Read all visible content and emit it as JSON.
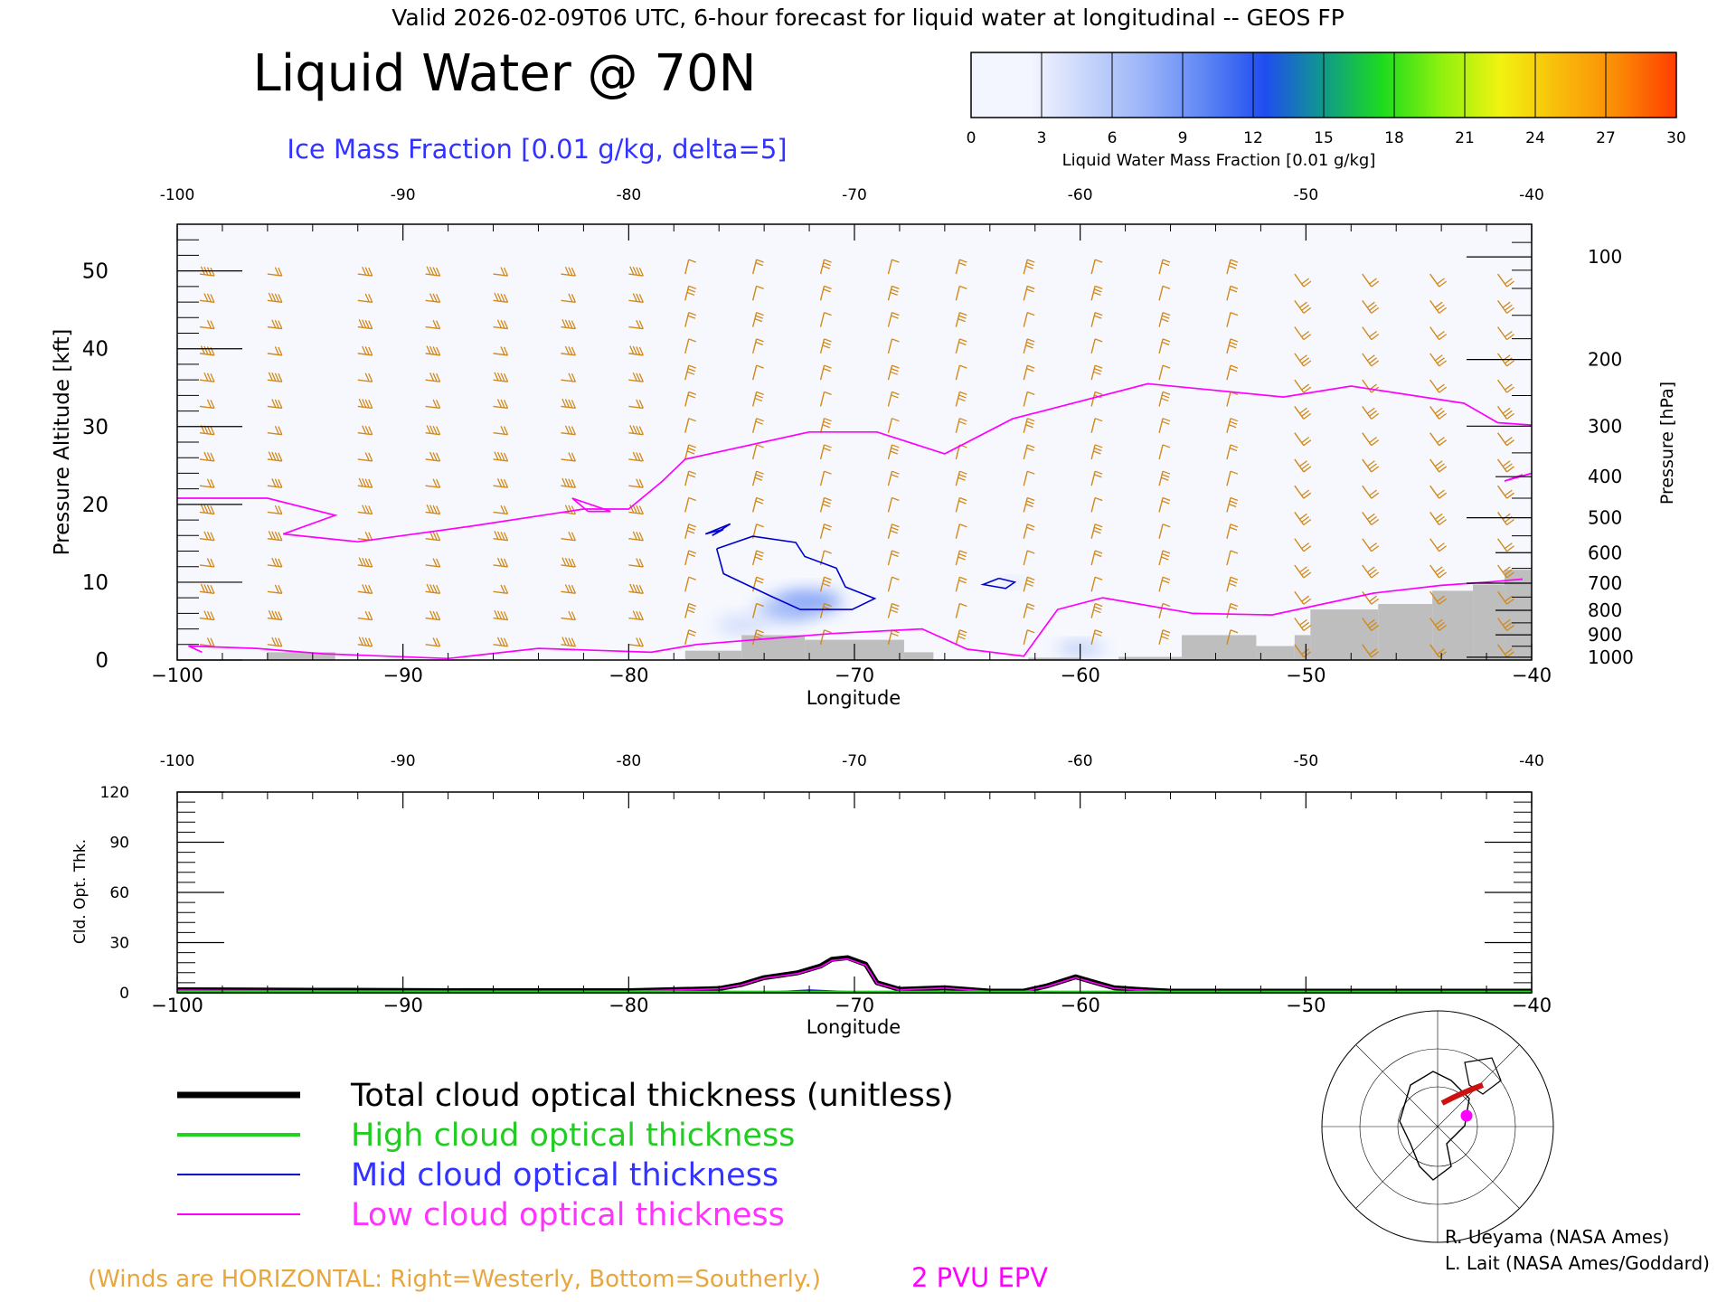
{
  "header": {
    "valid_line": "Valid 2026-02-09T06 UTC, 6-hour forecast for liquid water at longitudinal -- GEOS FP",
    "title": "Liquid Water @ 70N",
    "subtitle": "Ice Mass Fraction [0.01 g/kg, delta=5]"
  },
  "colorbar": {
    "label": "Liquid Water Mass Fraction [0.01 g/kg]",
    "ticks": [
      "0",
      "3",
      "6",
      "9",
      "12",
      "15",
      "18",
      "21",
      "24",
      "27",
      "30"
    ],
    "colors": [
      "#f4f6ff",
      "#c6d4fb",
      "#98b2f8",
      "#5c84f4",
      "#1f4df0",
      "#0f9a8a",
      "#1ddc1d",
      "#8ff10e",
      "#f2f210",
      "#f8bc0a",
      "#fb8a06",
      "#ff3c00"
    ]
  },
  "colors": {
    "wind": "#d2891a",
    "epv": "#ff00ff",
    "ice": "#0000cc",
    "terrain": "#bebebe"
  },
  "upper_panel": {
    "top_ticks": [
      "-100",
      "-90",
      "-80",
      "-70",
      "-60",
      "-50",
      "-40"
    ],
    "bottom_ticks": [
      "−100",
      "−90",
      "−80",
      "−70",
      "−60",
      "−50",
      "−40"
    ],
    "xlabel": "Longitude",
    "ylabel": "Pressure Altitude [kft]",
    "y_ticks": [
      "0",
      "10",
      "20",
      "30",
      "40",
      "50"
    ],
    "right_label": "Pressure [hPa]",
    "pressure_ticks": [
      "100",
      "200",
      "300",
      "400",
      "500",
      "600",
      "700",
      "800",
      "900",
      "1000"
    ]
  },
  "lower_panel": {
    "top_ticks": [
      "-100",
      "-90",
      "-80",
      "-70",
      "-60",
      "-50",
      "-40"
    ],
    "bottom_ticks": [
      "−100",
      "−90",
      "−80",
      "−70",
      "−60",
      "−50",
      "−40"
    ],
    "xlabel": "Longitude",
    "ylabel": "Cld. Opt. Thk.",
    "y_ticks": [
      "0",
      "30",
      "60",
      "90",
      "120"
    ]
  },
  "legend": {
    "total": "Total cloud optical thickness (unitless)",
    "high": "High cloud optical thickness",
    "mid": "Mid cloud optical thickness",
    "low": "Low cloud optical thickness"
  },
  "footer": {
    "winds_note": "(Winds are HORIZONTAL: Right=Westerly, Bottom=Southerly.)",
    "epv_label": "2 PVU EPV",
    "credit1": "R. Ueyama (NASA Ames)",
    "credit2": "L. Lait (NASA Ames/Goddard)"
  },
  "chart_data": [
    {
      "type": "heatmap",
      "title": "Liquid Water @ 70N",
      "xlabel": "Longitude",
      "ylabel": "Pressure Altitude [kft]",
      "xlim": [
        -100,
        -40
      ],
      "ylim": [
        0,
        56
      ],
      "cloud_liquid_water": [
        {
          "lon": -72,
          "kft": 7.5,
          "value": 6
        },
        {
          "lon": -73,
          "kft": 6.5,
          "value": 4
        },
        {
          "lon": -75,
          "kft": 4.5,
          "value": 2
        },
        {
          "lon": -60,
          "kft": 1.5,
          "value": 4
        },
        {
          "lon": -63,
          "kft": 10,
          "value": 2
        }
      ],
      "ice_contour_5": [
        [
          [
            -75.8,
            16.8
          ],
          [
            -76.6,
            16.2
          ],
          [
            -75.5,
            17.5
          ],
          [
            -76.3,
            16.0
          ],
          [
            -75.8,
            16.8
          ]
        ],
        [
          [
            -76.1,
            14.3
          ],
          [
            -74.5,
            15.9
          ],
          [
            -72.6,
            15.1
          ],
          [
            -72.2,
            13.3
          ],
          [
            -70.8,
            11.8
          ],
          [
            -70.4,
            9.4
          ],
          [
            -69.1,
            7.9
          ],
          [
            -70.1,
            6.5
          ],
          [
            -72.4,
            6.5
          ],
          [
            -73.7,
            8.2
          ],
          [
            -75.8,
            11.1
          ],
          [
            -76.1,
            14.3
          ]
        ],
        [
          [
            -63.6,
            10.5
          ],
          [
            -62.9,
            10.0
          ],
          [
            -63.3,
            9.2
          ],
          [
            -64.3,
            9.7
          ],
          [
            -63.6,
            10.5
          ]
        ]
      ],
      "epv_2pvu": [
        [
          [
            -100,
            20.8
          ],
          [
            -96,
            20.8
          ],
          [
            -93,
            18.6
          ],
          [
            -95.3,
            16.2
          ],
          [
            -92,
            15.2
          ],
          [
            -87,
            17.2
          ],
          [
            -82,
            19.4
          ],
          [
            -80,
            19.4
          ],
          [
            -78.5,
            23
          ],
          [
            -77.5,
            25.8
          ],
          [
            -72,
            29.3
          ],
          [
            -69,
            29.3
          ],
          [
            -66,
            26.5
          ],
          [
            -63,
            31
          ],
          [
            -57,
            35.5
          ],
          [
            -51,
            33.8
          ],
          [
            -48,
            35.2
          ],
          [
            -43,
            33
          ],
          [
            -41.5,
            30.5
          ],
          [
            -40,
            30.2
          ]
        ],
        [
          [
            -81.8,
            19.1
          ],
          [
            -82.5,
            20.8
          ],
          [
            -80.8,
            19.1
          ],
          [
            -81.8,
            19.1
          ]
        ],
        [
          [
            -98.9,
            1.0
          ],
          [
            -99.5,
            1.8
          ],
          [
            -96.5,
            1.5
          ],
          [
            -93.5,
            0.8
          ],
          [
            -88,
            0.2
          ],
          [
            -84,
            1.5
          ],
          [
            -79,
            1.0
          ],
          [
            -77,
            2.0
          ],
          [
            -71,
            3.4
          ],
          [
            -67,
            4.0
          ],
          [
            -65,
            1.4
          ],
          [
            -62.5,
            0.5
          ],
          [
            -61,
            6.5
          ],
          [
            -59,
            8.0
          ],
          [
            -55,
            6.0
          ],
          [
            -51.5,
            5.8
          ],
          [
            -47,
            8.6
          ],
          [
            -44,
            9.6
          ],
          [
            -42,
            10.0
          ],
          [
            -40.4,
            10.4
          ]
        ],
        [
          [
            -40.4,
            23.8
          ],
          [
            -41.2,
            23.0
          ],
          [
            -40,
            24.0
          ]
        ]
      ],
      "terrain": [
        {
          "lon": [
            -96,
            -93
          ],
          "kft": 1.0
        },
        {
          "lon": [
            -77.5,
            -75
          ],
          "kft": 1.2
        },
        {
          "lon": [
            -75,
            -72.2
          ],
          "kft": 3.2
        },
        {
          "lon": [
            -72.2,
            -67.8
          ],
          "kft": 2.6
        },
        {
          "lon": [
            -67.8,
            -66.5
          ],
          "kft": 1.0
        },
        {
          "lon": [
            -62.3,
            -60
          ],
          "kft": 0.3
        },
        {
          "lon": [
            -58.3,
            -55.5
          ],
          "kft": 0.4
        },
        {
          "lon": [
            -55.5,
            -52.2
          ],
          "kft": 3.2
        },
        {
          "lon": [
            -52.2,
            -50.5
          ],
          "kft": 1.8
        },
        {
          "lon": [
            -50.5,
            -49.8
          ],
          "kft": 3.2
        },
        {
          "lon": [
            -49.8,
            -46.8
          ],
          "kft": 6.5
        },
        {
          "lon": [
            -46.8,
            -44.4
          ],
          "kft": 7.2
        },
        {
          "lon": [
            -44.4,
            -42.6
          ],
          "kft": 8.9
        },
        {
          "lon": [
            -42.6,
            -41.2
          ],
          "kft": 9.7
        },
        {
          "lon": [
            -41.2,
            -40
          ],
          "kft": 11.6
        }
      ]
    },
    {
      "type": "line",
      "xlabel": "Longitude",
      "ylabel": "Cld. Opt. Thk.",
      "xlim": [
        -100,
        -40
      ],
      "ylim": [
        0,
        120
      ],
      "series": [
        {
          "name": "Total cloud optical thickness (unitless)",
          "x": [
            -100,
            -94,
            -86,
            -80,
            -76,
            -75,
            -74,
            -73,
            -72.5,
            -71.5,
            -71,
            -70.3,
            -69.5,
            -69,
            -68,
            -66,
            -64,
            -62.5,
            -61.5,
            -60.2,
            -59.3,
            -58.5,
            -57.5,
            -56,
            -50,
            -40
          ],
          "values": [
            1.8,
            1.5,
            1.2,
            1.2,
            2.5,
            5,
            9,
            11,
            12,
            16,
            20,
            21,
            17,
            6,
            2,
            3,
            1,
            1,
            4,
            9.5,
            6,
            3,
            2,
            1,
            1,
            1
          ]
        },
        {
          "name": "High cloud optical thickness",
          "x": [
            -100,
            -70,
            -40
          ],
          "values": [
            0.3,
            0.3,
            0.3
          ]
        },
        {
          "name": "Mid cloud optical thickness",
          "x": [
            -100,
            -74,
            -72,
            -70,
            -65,
            -60,
            -40
          ],
          "values": [
            0,
            0.2,
            1.5,
            0.5,
            0,
            0.2,
            0
          ]
        },
        {
          "name": "Low cloud optical thickness",
          "x": [
            -100,
            -94,
            -86,
            -80,
            -76,
            -75,
            -74,
            -73,
            -72.5,
            -71.5,
            -71,
            -70.3,
            -69.5,
            -69,
            -68,
            -66,
            -64,
            -62.5,
            -61.5,
            -60.2,
            -59.3,
            -58.5,
            -57.5,
            -56,
            -50,
            -40
          ],
          "values": [
            1.5,
            1.2,
            1.0,
            1.0,
            2.3,
            4.7,
            8.7,
            10.6,
            11.5,
            15.4,
            19.3,
            20.2,
            16.5,
            5.6,
            1.8,
            2.8,
            0.8,
            0.8,
            3.7,
            9.0,
            5.6,
            2.7,
            1.8,
            0.8,
            0.8,
            0.8
          ]
        }
      ]
    }
  ]
}
